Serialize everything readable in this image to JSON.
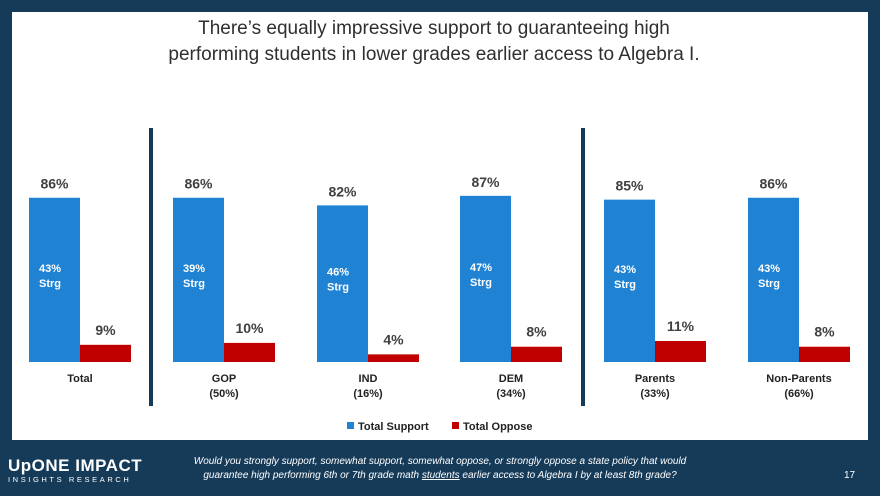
{
  "title_line1": "There’s equally impressive support to guaranteeing high",
  "title_line2": "performing students in lower grades earlier access to Algebra I.",
  "logo": {
    "line1": "UpONE IMPACT",
    "line2": "INSIGHTS RESEARCH"
  },
  "footer": {
    "question_line1": "Would you strongly support, somewhat support, somewhat oppose, or strongly oppose a state policy that would",
    "question_line2_pre": "guarantee high performing 6th or 7th grade math ",
    "question_line2_ul": "students",
    "question_line2_post": " earlier access to Algebra I by at least 8th grade?",
    "page_number": "17"
  },
  "colors": {
    "support": "#1f82d2",
    "oppose": "#c00000",
    "divider": "#163b59"
  },
  "chart_data": {
    "type": "bar",
    "categories": [
      {
        "name": "Total",
        "sub": ""
      },
      {
        "name": "GOP",
        "sub": "(50%)"
      },
      {
        "name": "IND",
        "sub": "(16%)"
      },
      {
        "name": "DEM",
        "sub": "(34%)"
      },
      {
        "name": "Parents",
        "sub": "(33%)"
      },
      {
        "name": "Non-Parents",
        "sub": "(66%)"
      }
    ],
    "series": [
      {
        "name": "Total Support",
        "values": [
          86,
          86,
          82,
          87,
          85,
          86
        ],
        "labels": [
          "86%",
          "86%",
          "82%",
          "87%",
          "85%",
          "86%"
        ]
      },
      {
        "name": "Total Oppose",
        "values": [
          9,
          10,
          4,
          8,
          11,
          8
        ],
        "labels": [
          "9%",
          "10%",
          "4%",
          "8%",
          "11%",
          "8%"
        ]
      }
    ],
    "strong_support": [
      "43%",
      "39%",
      "46%",
      "47%",
      "43%",
      "43%"
    ],
    "strong_label": "Strg",
    "ylim": [
      0,
      100
    ],
    "legend_position": "bottom"
  }
}
